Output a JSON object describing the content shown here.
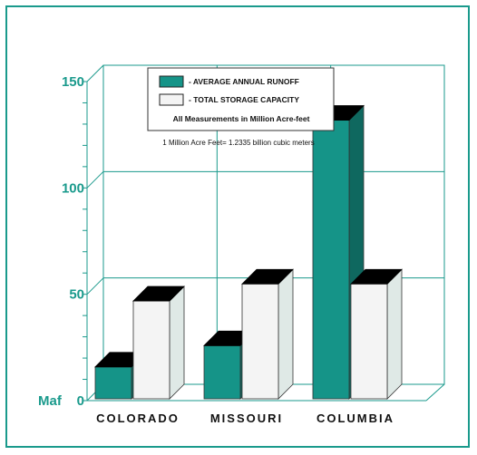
{
  "colors": {
    "frame": "#1a9a8c",
    "runoff": "#159488",
    "runoff_side": "#0d6e65",
    "storage": "#f4f4f4",
    "top": "#000000",
    "grid": "#1a9a8c",
    "axis_text": "#1a9a8c"
  },
  "chart_data": {
    "type": "bar",
    "title": "",
    "xlabel": "",
    "ylabel": "Maf",
    "categories": [
      "COLORADO",
      "MISSOURI",
      "COLUMBIA"
    ],
    "series": [
      {
        "name": "- AVERAGE ANNUAL RUNOFF",
        "values": [
          15,
          25,
          131
        ],
        "color": "#159488"
      },
      {
        "name": "- TOTAL STORAGE CAPACITY",
        "values": [
          46,
          54,
          54
        ],
        "color": "#f4f4f4"
      }
    ],
    "ylim": [
      0,
      150
    ],
    "yticks": [
      0,
      50,
      100,
      150
    ],
    "ytick_labels": [
      "0",
      "50",
      "100",
      "150"
    ],
    "grid": true,
    "legend": {
      "placement": "top-left",
      "note": "All Measurements in Million Acre-feet"
    },
    "annotation": "1 Million Acre Feet= 1.2335 billion cubic meters"
  }
}
